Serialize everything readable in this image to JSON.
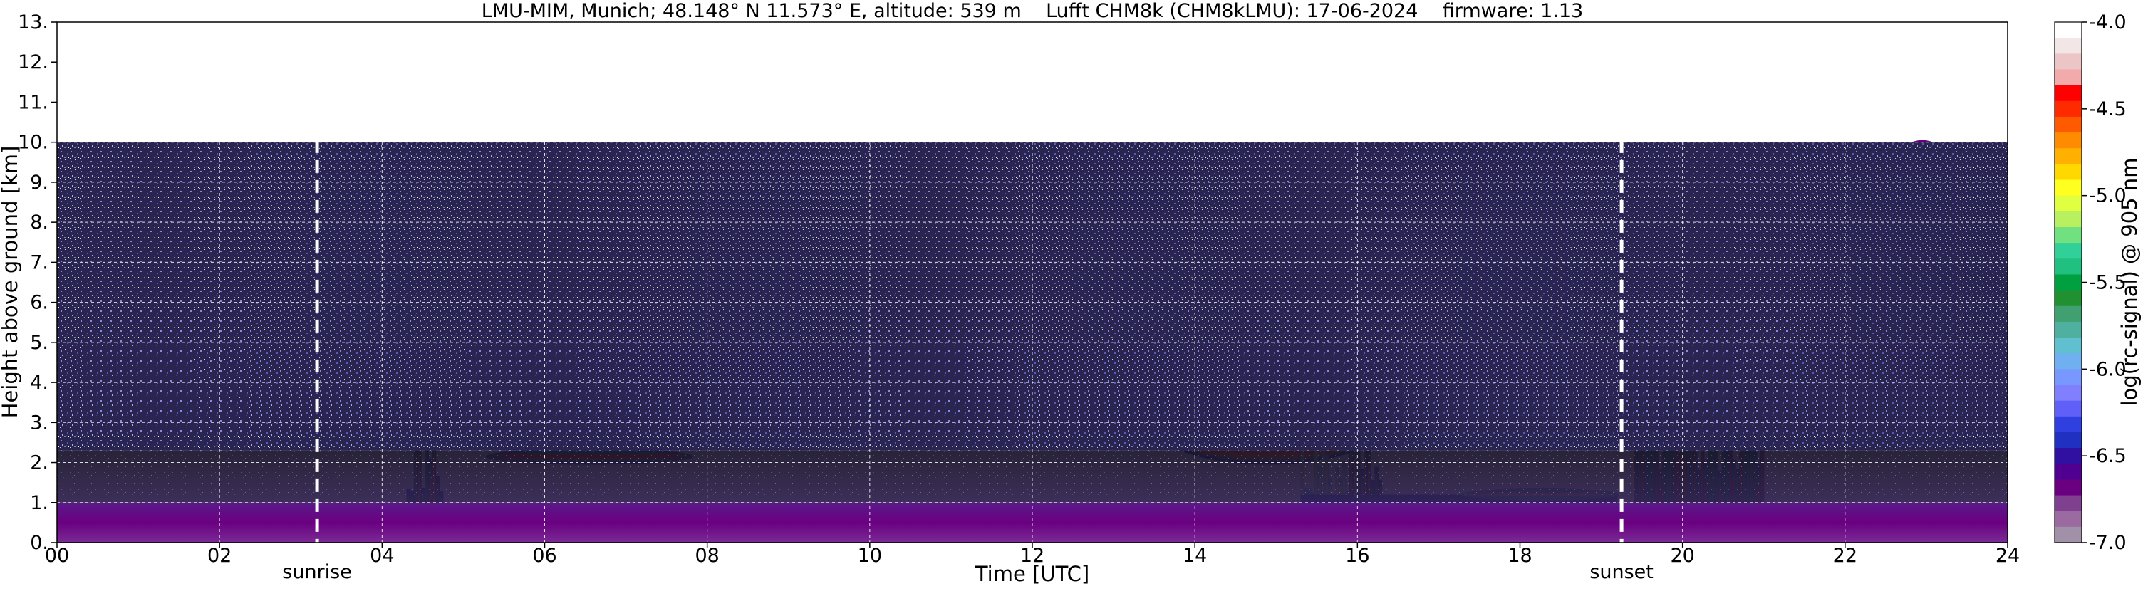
{
  "chart_data": {
    "type": "heatmap",
    "title": "LMU-MIM, Munich; 48.148° N 11.573° E, altitude: 539 m    Lufft CHM8k (CHM8kLMU): 17-06-2024    firmware: 1.13",
    "xlabel": "Time [UTC]",
    "ylabel": "Height above ground [km]",
    "colorbar_label": "log(rc-signal) @ 905 nm",
    "xlim": [
      0,
      24
    ],
    "ylim": [
      0,
      13
    ],
    "x_ticks": [
      "00",
      "02",
      "04",
      "06",
      "08",
      "10",
      "12",
      "14",
      "16",
      "18",
      "20",
      "22",
      "24"
    ],
    "y_ticks": [
      "0.",
      "1.",
      "2.",
      "3.",
      "4.",
      "5.",
      "6.",
      "7.",
      "8.",
      "9.",
      "10.",
      "11.",
      "12.",
      "13."
    ],
    "grid": true,
    "colorbar": {
      "range": [
        -7.0,
        -4.0
      ],
      "ticks": [
        "-4.0",
        "-4.5",
        "-5.0",
        "-5.5",
        "-6.0",
        "-6.5",
        "-7.0"
      ],
      "colors": [
        "#ffffff",
        "#f3e6e6",
        "#ecc6c6",
        "#f2aaaa",
        "#ff0000",
        "#ff2a00",
        "#ff5a00",
        "#ff8c00",
        "#ffb000",
        "#ffd800",
        "#ffff20",
        "#e0ff40",
        "#b8f060",
        "#70e080",
        "#30d098",
        "#20c080",
        "#00a040",
        "#209030",
        "#40a070",
        "#50b0a0",
        "#60c0d0",
        "#70b0f0",
        "#7898ff",
        "#8080ff",
        "#6060f8",
        "#3040e0",
        "#2030c0",
        "#3010a0",
        "#500090",
        "#6a0080",
        "#804090",
        "#9a6aa0",
        "#a090a8"
      ]
    },
    "markers": [
      {
        "label": "sunrise",
        "x": 3.2
      },
      {
        "label": "sunset",
        "x": 19.25
      }
    ],
    "features": [
      {
        "kind": "cloud",
        "x": [
          0.0,
          1.3
        ],
        "y": [
          3.8,
          4.7
        ],
        "intensity": -4.5
      },
      {
        "kind": "cloud",
        "x": [
          2.1,
          2.9
        ],
        "y": [
          2.6,
          3.3
        ],
        "intensity": -4.6
      },
      {
        "kind": "cloud",
        "x": [
          1.2,
          2.0
        ],
        "y": [
          8.3,
          9.3
        ],
        "intensity": -5.2
      },
      {
        "kind": "cloud",
        "x": [
          2.95,
          3.45
        ],
        "y": [
          6.5,
          8.0
        ],
        "intensity": -5.0
      },
      {
        "kind": "cloud",
        "x": [
          3.5,
          4.6
        ],
        "y": [
          2.4,
          2.6
        ],
        "intensity": -4.5
      },
      {
        "kind": "convective",
        "x": [
          4.3,
          4.75
        ],
        "y": [
          0.0,
          3.3
        ],
        "intensity": -4.6
      },
      {
        "kind": "cloud",
        "x": [
          5.0,
          5.4
        ],
        "y": [
          5.8,
          6.6
        ],
        "intensity": -4.8
      },
      {
        "kind": "cloud",
        "x": [
          5.0,
          5.3
        ],
        "y": [
          4.8,
          5.1
        ],
        "intensity": -4.8
      },
      {
        "kind": "cloud",
        "x": [
          5.3,
          7.8
        ],
        "y": [
          2.0,
          2.3
        ],
        "intensity": -4.5
      },
      {
        "kind": "cloud",
        "x": [
          6.7,
          7.0
        ],
        "y": [
          4.3,
          5.5
        ],
        "intensity": -4.2
      },
      {
        "kind": "cloud",
        "x": [
          8.0,
          10.0
        ],
        "y": [
          3.8,
          5.0
        ],
        "intensity": -4.1
      },
      {
        "kind": "cloud",
        "x": [
          11.6,
          11.9
        ],
        "y": [
          6.3,
          6.5
        ],
        "intensity": -4.6
      },
      {
        "kind": "cloud",
        "x": [
          13.4,
          14.1
        ],
        "y": [
          4.8,
          5.9
        ],
        "intensity": -4.4
      },
      {
        "kind": "cloud",
        "x": [
          13.5,
          16.3
        ],
        "y": [
          2.0,
          3.9
        ],
        "intensity": -4.6
      },
      {
        "kind": "convective",
        "x": [
          15.3,
          15.9
        ],
        "y": [
          0.0,
          2.8
        ],
        "intensity": -4.1
      },
      {
        "kind": "convective",
        "x": [
          15.9,
          16.3
        ],
        "y": [
          0.0,
          3.6
        ],
        "intensity": -4.6
      },
      {
        "kind": "cloud",
        "x": [
          16.3,
          17.9
        ],
        "y": [
          3.3,
          3.8
        ],
        "intensity": -4.6
      },
      {
        "kind": "aerosol_layer",
        "x": [
          15.3,
          19.2
        ],
        "y": [
          0.0,
          1.2
        ],
        "intensity": -6.6
      },
      {
        "kind": "cloud",
        "x": [
          17.3,
          19.2
        ],
        "y": [
          1.1,
          1.3
        ],
        "intensity": -4.3
      },
      {
        "kind": "convective",
        "x": [
          19.4,
          21.0
        ],
        "y": [
          0.0,
          4.8
        ],
        "intensity": -4.5
      },
      {
        "kind": "cloud",
        "x": [
          22.7,
          23.2
        ],
        "y": [
          9.2,
          10.0
        ],
        "intensity": -4.9
      },
      {
        "kind": "cloud",
        "x": [
          23.3,
          24.0
        ],
        "y": [
          8.5,
          9.6
        ],
        "intensity": -4.9
      },
      {
        "kind": "boundary_layer",
        "x": [
          0.0,
          24.0
        ],
        "y": [
          0.0,
          1.0
        ],
        "intensity": -6.5
      },
      {
        "kind": "residual_layer",
        "x": [
          0.0,
          24.0
        ],
        "y": [
          1.0,
          2.3
        ],
        "intensity": -6.8
      },
      {
        "kind": "noise",
        "x": [
          0.0,
          24.0
        ],
        "y": [
          2.3,
          10.0
        ],
        "intensity": -6.5
      }
    ]
  }
}
